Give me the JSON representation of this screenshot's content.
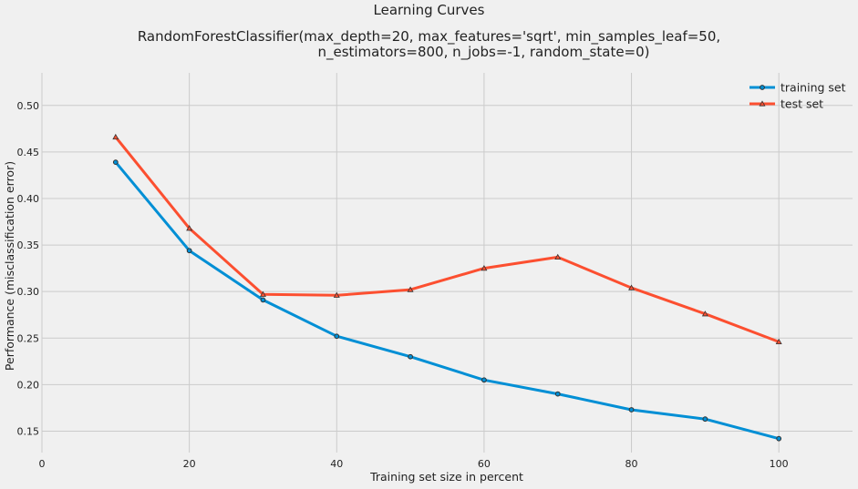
{
  "chart_data": {
    "type": "line",
    "title": "Learning Curves",
    "subtitle_lines": [
      "RandomForestClassifier(max_depth=20, max_features='sqrt', min_samples_leaf=50,",
      "n_estimators=800, n_jobs=-1, random_state=0)"
    ],
    "xlabel": "Training set size in percent",
    "ylabel": "Performance (misclassification error)",
    "x": [
      10,
      20,
      30,
      40,
      50,
      60,
      70,
      80,
      90,
      100
    ],
    "series": [
      {
        "name": "training set",
        "color": "#008fd5",
        "marker": "circle",
        "values": [
          0.439,
          0.344,
          0.291,
          0.252,
          0.23,
          0.205,
          0.19,
          0.173,
          0.163,
          0.142
        ]
      },
      {
        "name": "test set",
        "color": "#fc4f30",
        "marker": "triangle",
        "values": [
          0.466,
          0.368,
          0.297,
          0.296,
          0.302,
          0.325,
          0.337,
          0.304,
          0.276,
          0.246
        ]
      }
    ],
    "xlim": [
      0,
      110
    ],
    "ylim": [
      0.127,
      0.535
    ],
    "xticks": [
      0,
      20,
      40,
      60,
      80,
      100
    ],
    "yticks": [
      0.15,
      0.2,
      0.25,
      0.3,
      0.35,
      0.4,
      0.45,
      0.5
    ],
    "grid": true,
    "legend_position": "top-right"
  }
}
